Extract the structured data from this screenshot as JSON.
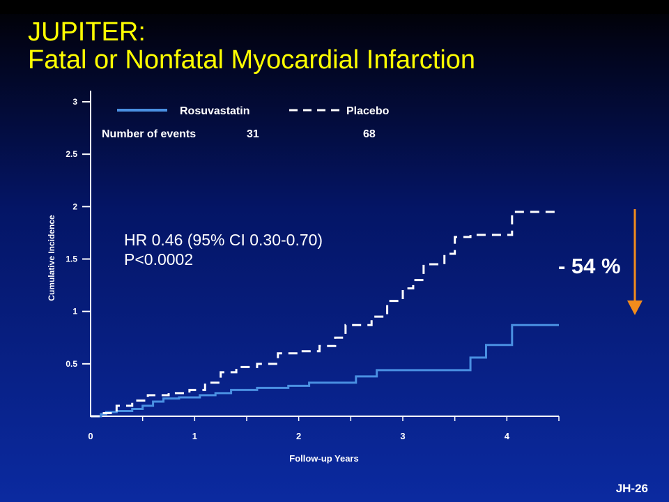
{
  "title": {
    "line1": "JUPITER:",
    "line2": "Fatal or Nonfatal Myocardial Infarction"
  },
  "stats": {
    "hr": "HR 0.46 (95% CI 0.30-0.70)",
    "p": "P<0.0002"
  },
  "reduction_label": "- 54 %",
  "slide_code": "JH-26",
  "colors": {
    "title": "#ffff00",
    "rosuvastatin": "#4a90e2",
    "placebo": "#ffffff",
    "arrow": "#f28c1c",
    "text": "#ffffff"
  },
  "chart_data": {
    "type": "line",
    "xlabel": "Follow-up Years",
    "ylabel": "Cumulative Incidence",
    "xlim": [
      0,
      4.5
    ],
    "ylim": [
      0,
      3
    ],
    "x_ticks": [
      "0",
      "1",
      "2",
      "3",
      "4"
    ],
    "y_ticks": [
      "0.5",
      "1",
      "1.5",
      "2",
      "2.5",
      "3"
    ],
    "grid": false,
    "legend_position": "top",
    "events_label": "Number of events",
    "series": [
      {
        "name": "Rosuvastatin",
        "style": "solid",
        "events": "31",
        "points": [
          [
            0,
            0
          ],
          [
            0.1,
            0.02
          ],
          [
            0.15,
            0.04
          ],
          [
            0.25,
            0.05
          ],
          [
            0.4,
            0.07
          ],
          [
            0.5,
            0.1
          ],
          [
            0.6,
            0.14
          ],
          [
            0.7,
            0.17
          ],
          [
            0.85,
            0.18
          ],
          [
            1.05,
            0.2
          ],
          [
            1.2,
            0.22
          ],
          [
            1.35,
            0.25
          ],
          [
            1.6,
            0.27
          ],
          [
            1.9,
            0.29
          ],
          [
            2.1,
            0.32
          ],
          [
            2.55,
            0.38
          ],
          [
            2.75,
            0.44
          ],
          [
            3.65,
            0.56
          ],
          [
            3.8,
            0.68
          ],
          [
            4.05,
            0.87
          ],
          [
            4.5,
            0.87
          ]
        ]
      },
      {
        "name": "Placebo",
        "style": "dashed",
        "events": "68",
        "points": [
          [
            0,
            0
          ],
          [
            0.1,
            0.03
          ],
          [
            0.25,
            0.1
          ],
          [
            0.4,
            0.15
          ],
          [
            0.55,
            0.2
          ],
          [
            0.75,
            0.22
          ],
          [
            0.95,
            0.25
          ],
          [
            1.1,
            0.32
          ],
          [
            1.25,
            0.42
          ],
          [
            1.4,
            0.47
          ],
          [
            1.6,
            0.5
          ],
          [
            1.8,
            0.6
          ],
          [
            2.0,
            0.62
          ],
          [
            2.2,
            0.67
          ],
          [
            2.35,
            0.75
          ],
          [
            2.45,
            0.87
          ],
          [
            2.7,
            0.95
          ],
          [
            2.85,
            1.1
          ],
          [
            3.0,
            1.22
          ],
          [
            3.1,
            1.3
          ],
          [
            3.2,
            1.45
          ],
          [
            3.4,
            1.55
          ],
          [
            3.5,
            1.71
          ],
          [
            3.65,
            1.73
          ],
          [
            3.85,
            1.73
          ],
          [
            4.05,
            1.95
          ],
          [
            4.5,
            1.95
          ]
        ]
      }
    ]
  }
}
